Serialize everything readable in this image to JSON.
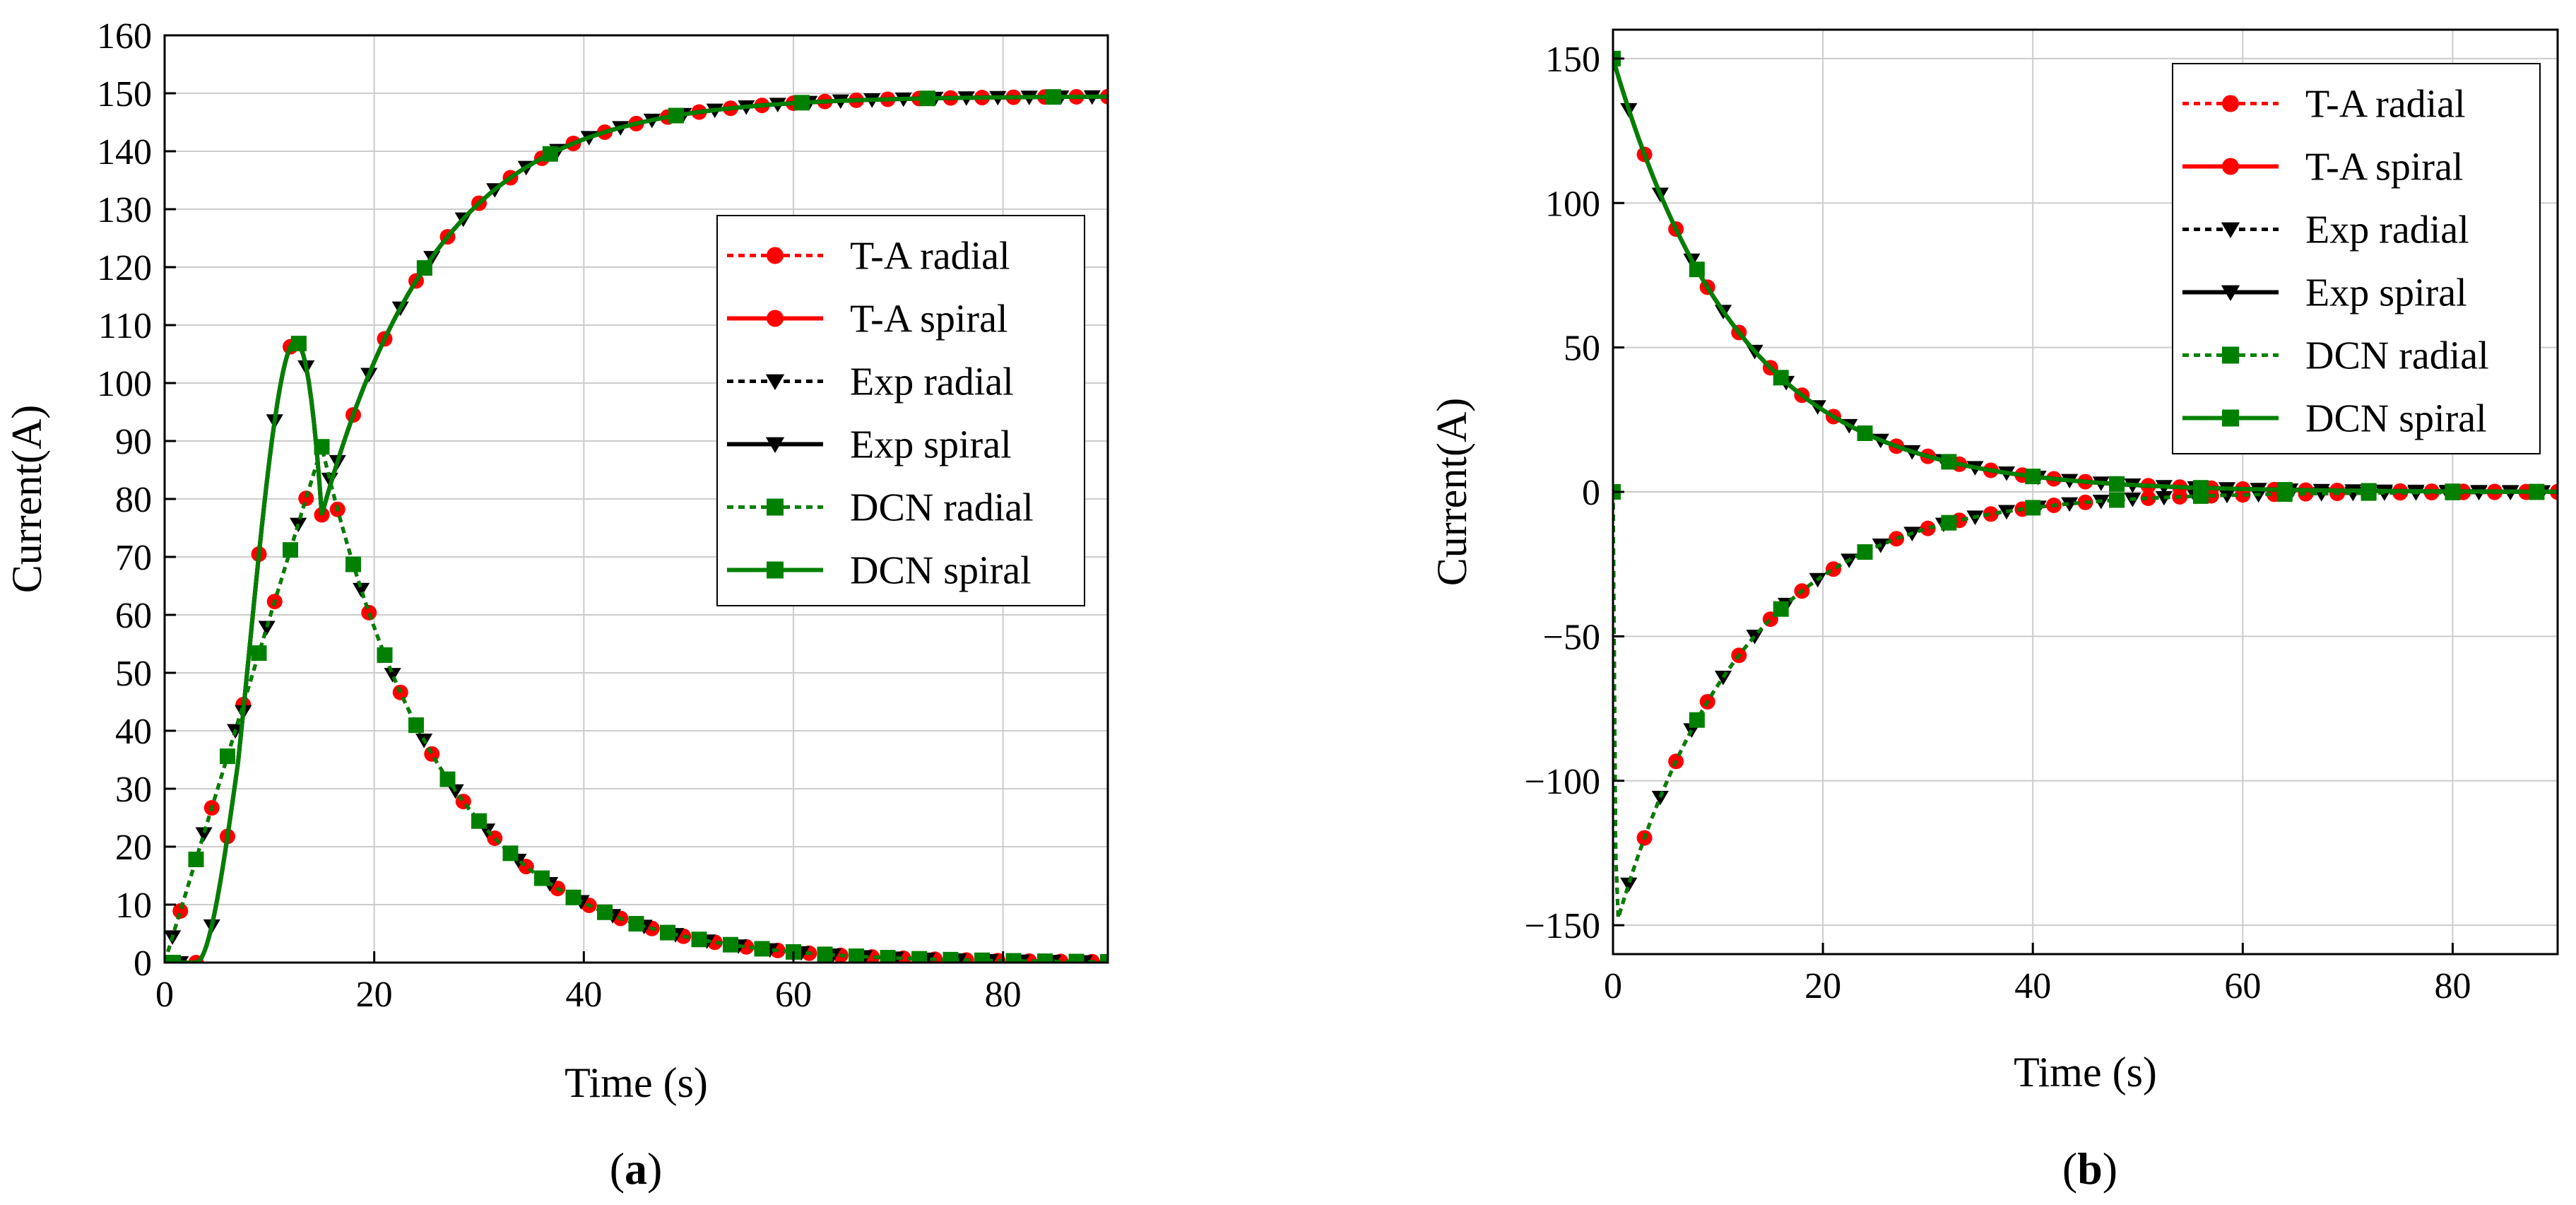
{
  "chart_data": [
    {
      "type": "line",
      "panel_label": {
        "open": "(",
        "letter": "a",
        "close": ")"
      },
      "xlabel": "Time (s)",
      "ylabel": "Current(A)",
      "xlim": [
        0,
        90
      ],
      "ylim": [
        0,
        160
      ],
      "xticks": [
        0,
        20,
        40,
        60,
        80
      ],
      "yticks": [
        0,
        10,
        20,
        30,
        40,
        50,
        60,
        70,
        80,
        90,
        100,
        110,
        120,
        130,
        140,
        150,
        160
      ],
      "grid": true,
      "legend_position": "center-right",
      "series": [
        {
          "name": "T-A radial",
          "color": "#ff0000",
          "dash": "dotted",
          "marker": "circle",
          "curve": "peak",
          "x_start": 0,
          "peak_time": 15,
          "peak_value": 89,
          "tau": 11.6,
          "marker_offset": 1.5,
          "marker_step": 3
        },
        {
          "name": "T-A spiral",
          "color": "#ff0000",
          "dash": "solid",
          "marker": "circle",
          "curve": "rise",
          "x_start": 3,
          "final_value": 149.5,
          "tau": 11,
          "ramp_slope": 6.45,
          "marker_offset": 0,
          "marker_step": 3
        },
        {
          "name": "Exp radial",
          "color": "#000000",
          "dash": "dotted",
          "marker": "triangle-down",
          "curve": "peak",
          "x_start": 0,
          "peak_time": 15,
          "peak_value": 89,
          "tau": 11.6,
          "marker_offset": 0.75,
          "marker_step": 3
        },
        {
          "name": "Exp spiral",
          "color": "#000000",
          "dash": "solid",
          "marker": "triangle-down",
          "curve": "rise",
          "x_start": 3,
          "final_value": 149.5,
          "tau": 11,
          "ramp_slope": 6.45,
          "marker_offset": 1.5,
          "marker_step": 3
        },
        {
          "name": "DCN radial",
          "color": "#008000",
          "dash": "dotted",
          "marker": "square",
          "curve": "peak",
          "x_start": 0,
          "peak_time": 15,
          "peak_value": 89,
          "tau": 11.6,
          "marker_offset": 0,
          "marker_step": 3
        },
        {
          "name": "DCN spiral",
          "color": "#008000",
          "dash": "solid",
          "marker": "square",
          "curve": "rise",
          "x_start": 3,
          "final_value": 149.5,
          "tau": 11,
          "ramp_slope": 6.45,
          "marker_offset": 0.8,
          "marker_step": 12
        }
      ]
    },
    {
      "type": "line",
      "panel_label": {
        "open": "(",
        "letter": "b",
        "close": ")"
      },
      "xlabel": "Time (s)",
      "ylabel": "Current(A)",
      "xlim": [
        0,
        90
      ],
      "ylim": [
        -160,
        160
      ],
      "xticks": [
        0,
        20,
        40,
        60,
        80
      ],
      "yticks": [
        -150,
        -100,
        -50,
        0,
        50,
        100,
        150
      ],
      "yticklabels": [
        "−150",
        "−100",
        "−50",
        "0",
        "50",
        "100",
        "150"
      ],
      "grid": true,
      "legend_position": "top-right",
      "series": [
        {
          "name": "T-A radial",
          "color": "#ff0000",
          "dash": "dotted",
          "marker": "circle",
          "curve": "negative-recovery",
          "initial_value": -150,
          "tau": 12,
          "marker_offset": 0,
          "marker_step": 3
        },
        {
          "name": "T-A spiral",
          "color": "#ff0000",
          "dash": "solid",
          "marker": "circle",
          "curve": "decay",
          "initial_value": 150,
          "tau": 12,
          "marker_offset": 0,
          "marker_step": 3
        },
        {
          "name": "Exp radial",
          "color": "#000000",
          "dash": "dotted",
          "marker": "triangle-down",
          "curve": "negative-recovery",
          "initial_value": -150,
          "tau": 12,
          "marker_offset": 1.5,
          "marker_step": 3
        },
        {
          "name": "Exp spiral",
          "color": "#000000",
          "dash": "solid",
          "marker": "triangle-down",
          "curve": "decay",
          "initial_value": 150,
          "tau": 12,
          "marker_offset": 1.5,
          "marker_step": 3
        },
        {
          "name": "DCN radial",
          "color": "#008000",
          "dash": "dotted",
          "marker": "square",
          "curve": "negative-recovery",
          "initial_value": -150,
          "tau": 12,
          "marker_offset": 0,
          "marker_step": 8
        },
        {
          "name": "DCN spiral",
          "color": "#008000",
          "dash": "solid",
          "marker": "square",
          "curve": "decay",
          "initial_value": 150,
          "tau": 12,
          "marker_offset": 0,
          "marker_step": 8
        }
      ]
    }
  ]
}
